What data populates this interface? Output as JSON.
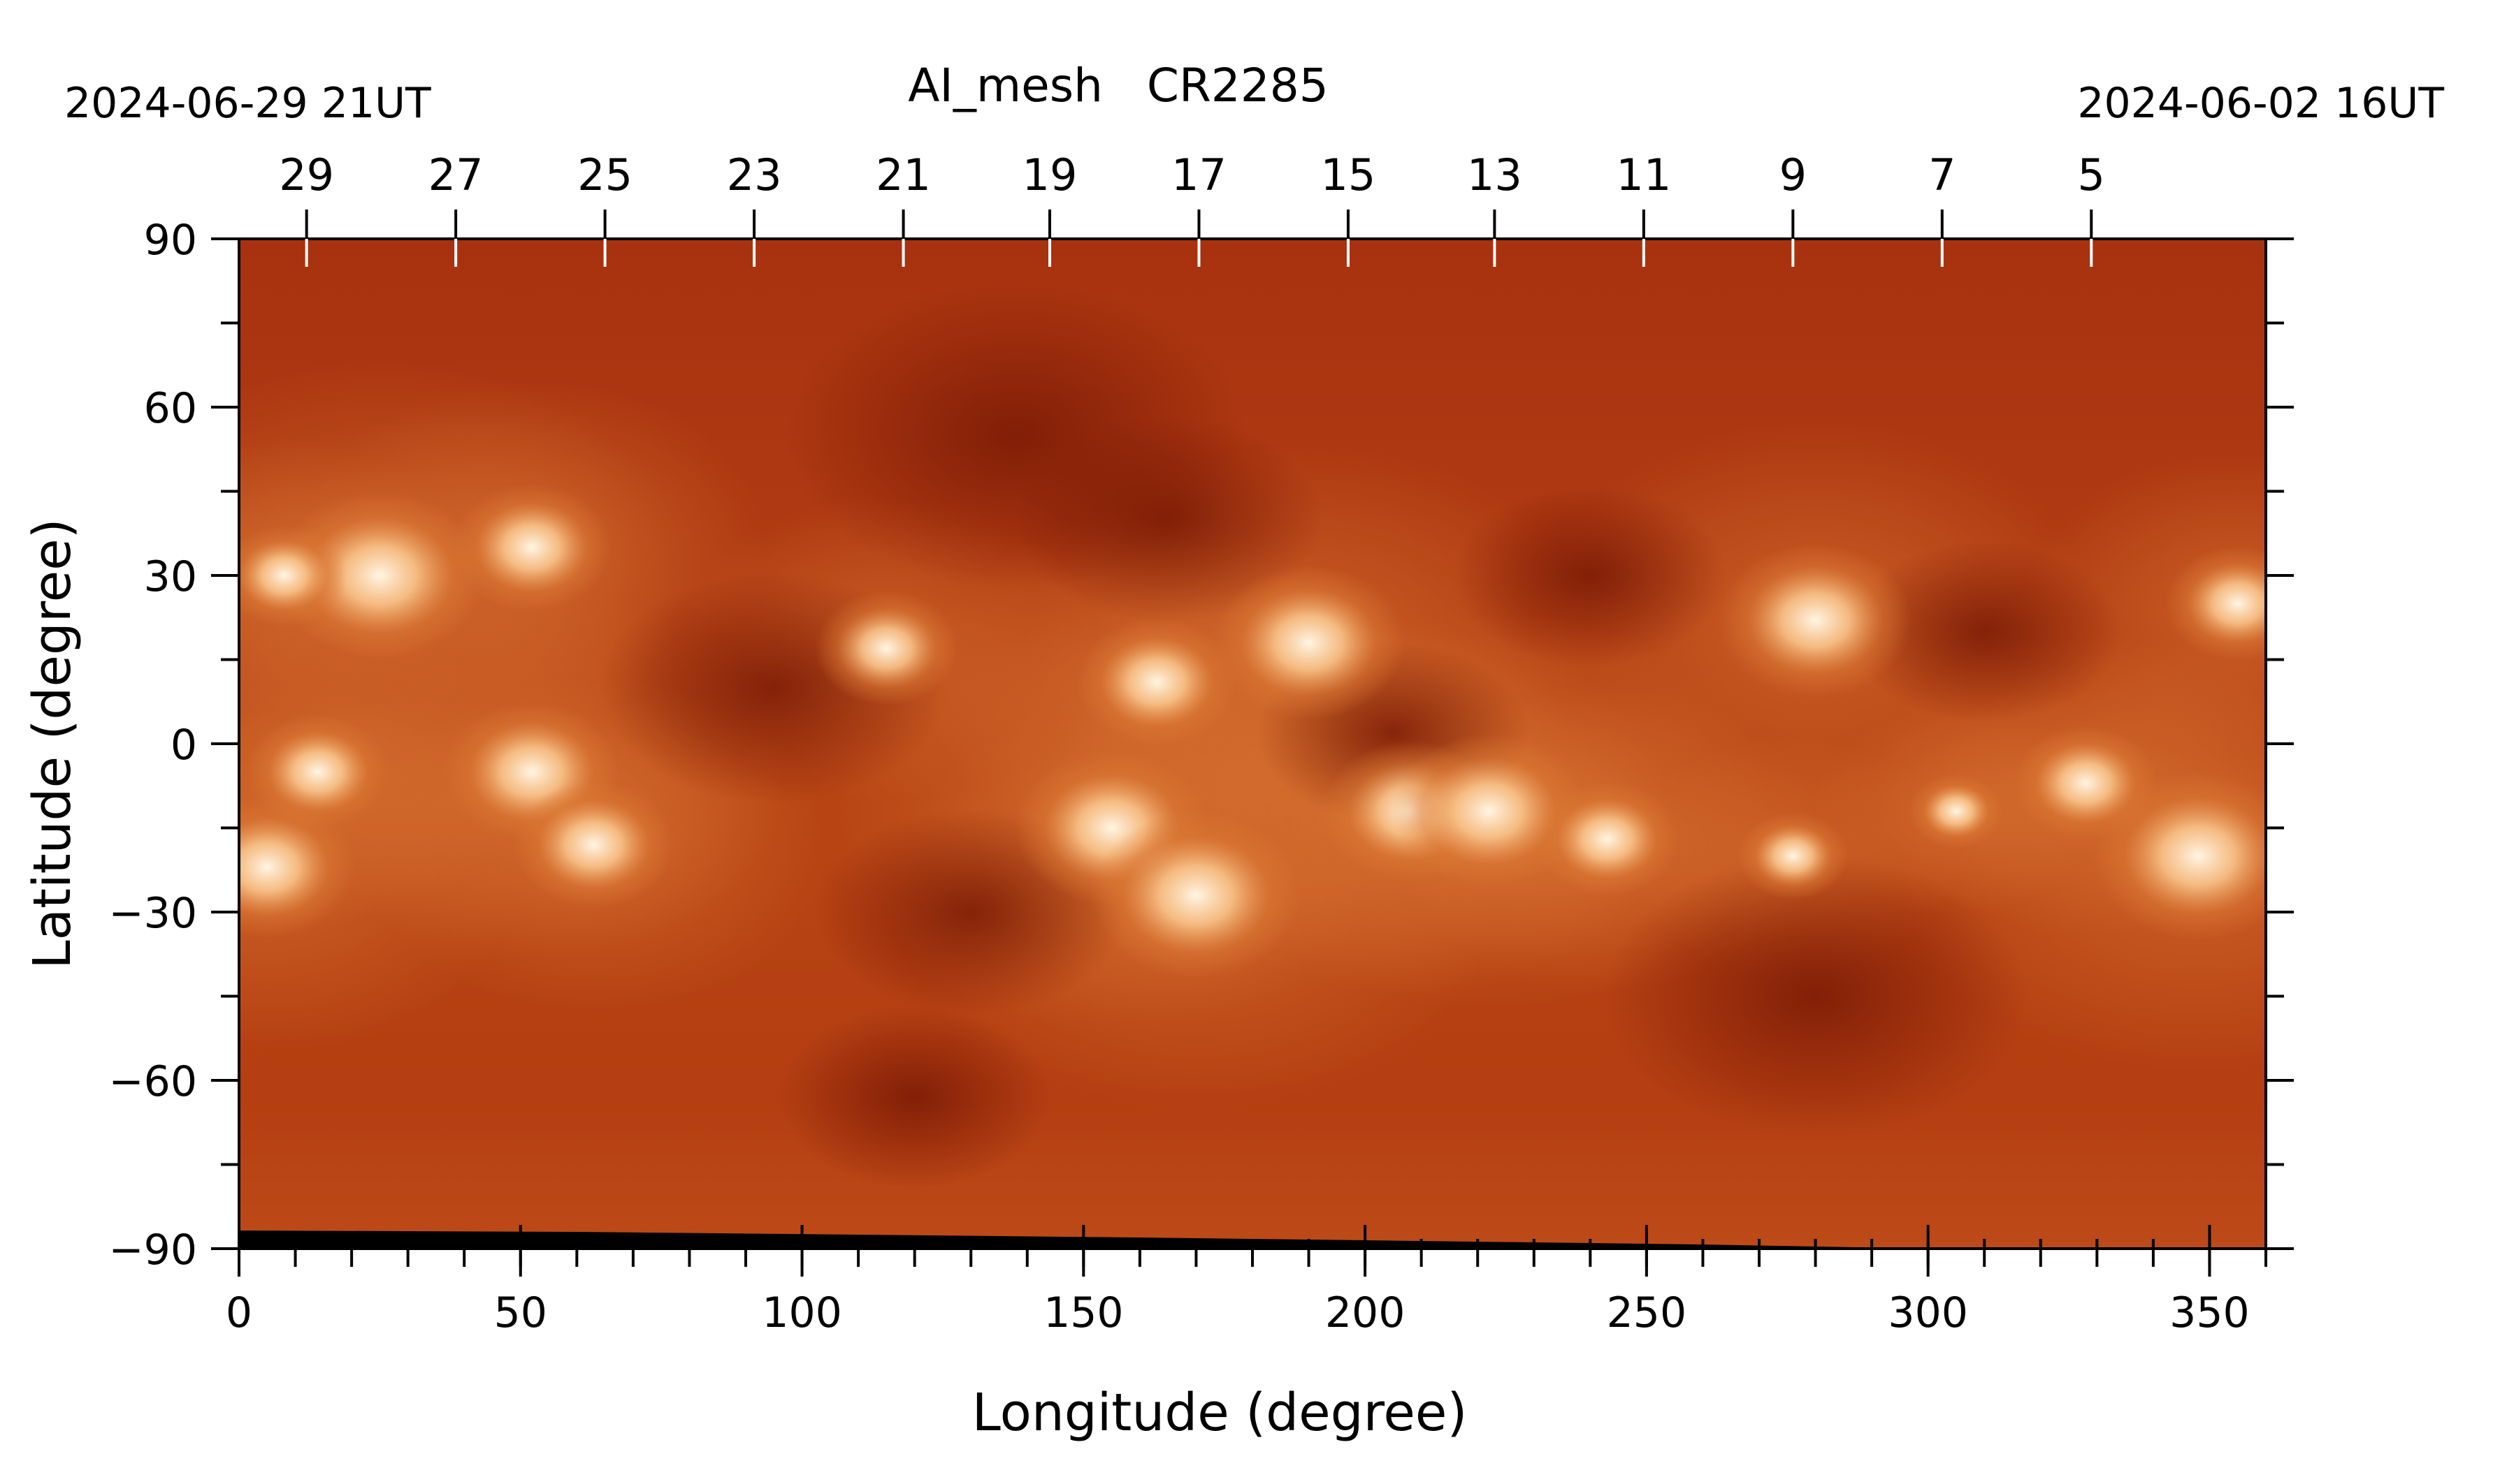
{
  "chart_data": {
    "type": "heatmap",
    "title": "AI_mesh   CR2285",
    "top_left_label": "2024-06-29 21UT",
    "top_right_label": "2024-06-02 16UT",
    "xlabel": "Longitude (degree)",
    "ylabel": "Latitude (degree)",
    "xlim": [
      0,
      360
    ],
    "ylim": [
      -90,
      90
    ],
    "x_ticks": [
      0,
      50,
      100,
      150,
      200,
      250,
      300,
      350
    ],
    "x_tick_labels": [
      "0",
      "50",
      "100",
      "150",
      "200",
      "250",
      "300",
      "350"
    ],
    "x_minor_step": 10,
    "y_ticks": [
      90,
      60,
      30,
      0,
      -30,
      -60,
      -90
    ],
    "y_tick_labels": [
      "90",
      "60",
      "30",
      "0",
      "−30",
      "−60",
      "−90"
    ],
    "y_minor_step": 15,
    "top_axis_ticks": [
      {
        "longitude": 12,
        "label": "29"
      },
      {
        "longitude": 38.5,
        "label": "27"
      },
      {
        "longitude": 65,
        "label": "25"
      },
      {
        "longitude": 91.5,
        "label": "23"
      },
      {
        "longitude": 118,
        "label": "21"
      },
      {
        "longitude": 144,
        "label": "19"
      },
      {
        "longitude": 170.5,
        "label": "17"
      },
      {
        "longitude": 197,
        "label": "15"
      },
      {
        "longitude": 223,
        "label": "13"
      },
      {
        "longitude": 249.5,
        "label": "11"
      },
      {
        "longitude": 276,
        "label": "9"
      },
      {
        "longitude": 302.5,
        "label": "7"
      },
      {
        "longitude": 329,
        "label": "5"
      }
    ],
    "colormap": {
      "dark": "#7a1a05",
      "base": "#b03a12",
      "mid": "#dc7a36",
      "bright": "#fff5e3"
    },
    "features": [
      {
        "kind": "bright",
        "lon": 25,
        "lat": 30,
        "size": 1.0
      },
      {
        "kind": "bright",
        "lon": 8,
        "lat": 30,
        "size": 0.5
      },
      {
        "kind": "bright",
        "lon": 52,
        "lat": 35,
        "size": 0.7
      },
      {
        "kind": "bright",
        "lon": 52,
        "lat": -5,
        "size": 0.8
      },
      {
        "kind": "bright",
        "lon": 14,
        "lat": -5,
        "size": 0.6
      },
      {
        "kind": "bright",
        "lon": 5,
        "lat": -22,
        "size": 0.8
      },
      {
        "kind": "bright",
        "lon": 63,
        "lat": -18,
        "size": 0.7
      },
      {
        "kind": "bright",
        "lon": 115,
        "lat": 17,
        "size": 0.6
      },
      {
        "kind": "bright",
        "lon": 163,
        "lat": 11,
        "size": 0.7
      },
      {
        "kind": "bright",
        "lon": 155,
        "lat": -15,
        "size": 0.9
      },
      {
        "kind": "bright",
        "lon": 170,
        "lat": -27,
        "size": 1.0
      },
      {
        "kind": "bright",
        "lon": 190,
        "lat": 18,
        "size": 0.9
      },
      {
        "kind": "bright",
        "lon": 208,
        "lat": -12,
        "size": 0.8
      },
      {
        "kind": "bright",
        "lon": 222,
        "lat": -12,
        "size": 0.9
      },
      {
        "kind": "bright",
        "lon": 243,
        "lat": -17,
        "size": 0.6
      },
      {
        "kind": "bright",
        "lon": 280,
        "lat": 22,
        "size": 0.9
      },
      {
        "kind": "bright",
        "lon": 276,
        "lat": -20,
        "size": 0.4
      },
      {
        "kind": "bright",
        "lon": 348,
        "lat": -20,
        "size": 1.0
      },
      {
        "kind": "bright",
        "lon": 328,
        "lat": -7,
        "size": 0.6
      },
      {
        "kind": "bright",
        "lon": 355,
        "lat": 25,
        "size": 0.6
      },
      {
        "kind": "bright",
        "lon": 305,
        "lat": -12,
        "size": 0.3
      },
      {
        "kind": "dark",
        "lon": 138,
        "lat": 55,
        "size": 1.0
      },
      {
        "kind": "dark",
        "lon": 165,
        "lat": 40,
        "size": 0.6
      },
      {
        "kind": "dark",
        "lon": 205,
        "lat": 2,
        "size": 0.5
      },
      {
        "kind": "dark",
        "lon": 280,
        "lat": -45,
        "size": 0.9
      },
      {
        "kind": "dark",
        "lon": 240,
        "lat": 30,
        "size": 0.5
      },
      {
        "kind": "dark",
        "lon": 95,
        "lat": 10,
        "size": 0.7
      },
      {
        "kind": "dark",
        "lon": 130,
        "lat": -30,
        "size": 0.6
      },
      {
        "kind": "dark",
        "lon": 120,
        "lat": -63,
        "size": 0.5
      },
      {
        "kind": "dark",
        "lon": 310,
        "lat": 20,
        "size": 0.5
      }
    ]
  }
}
